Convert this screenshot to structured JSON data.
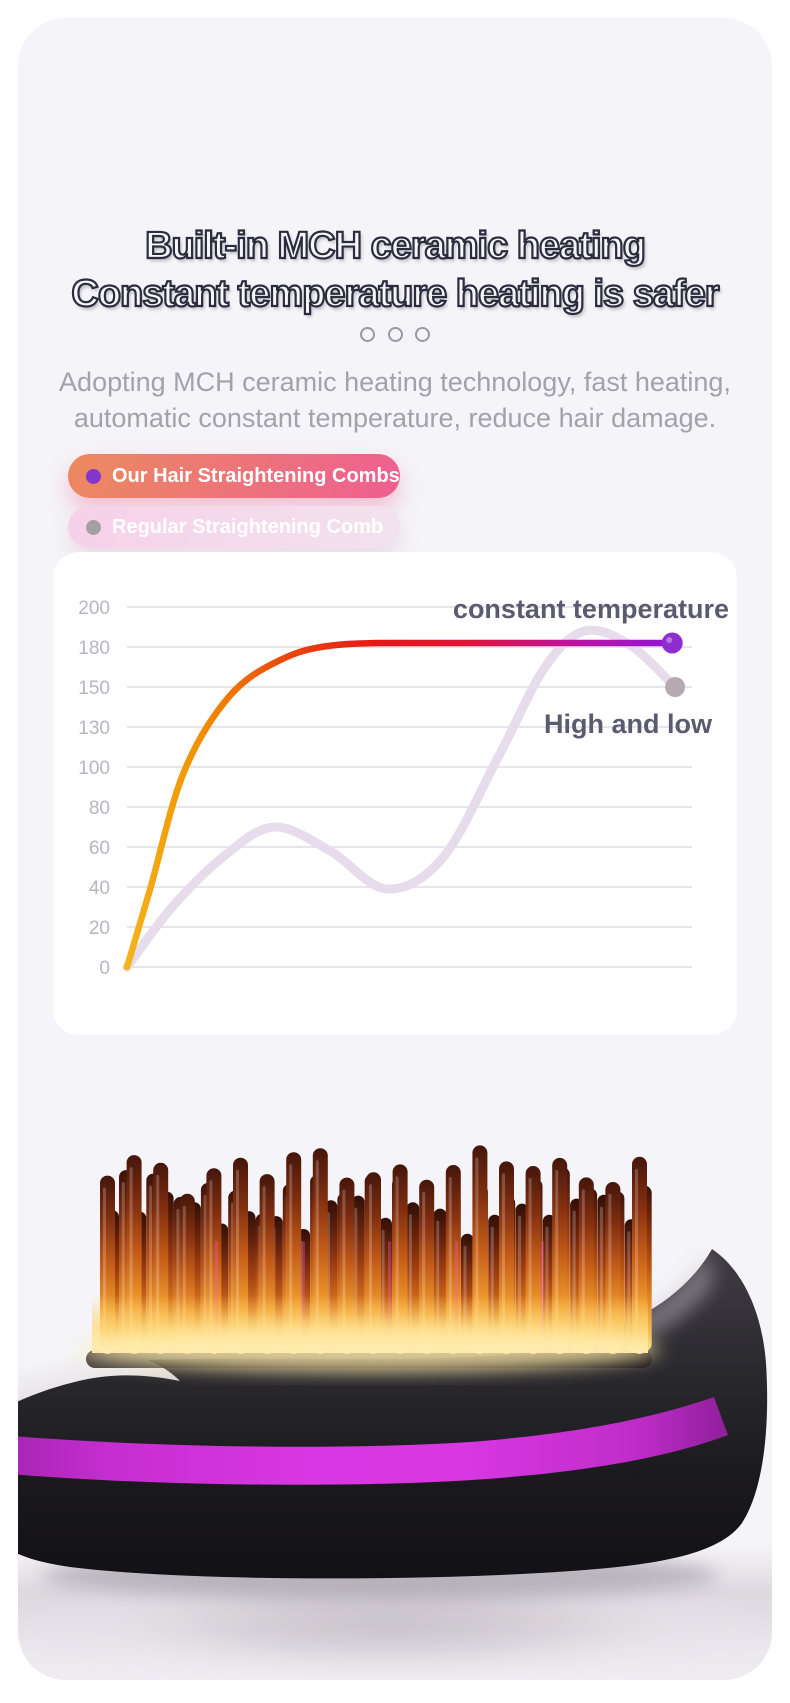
{
  "page": {
    "title_line1": "Built-in MCH ceramic heating",
    "title_line2": "Constant temperature heating is safer",
    "subtitle_line1": "Adopting MCH ceramic heating technology, fast heating,",
    "subtitle_line2": "automatic constant temperature, reduce hair damage.",
    "card_background": "#f5f4f8",
    "title_outline_color": "#2c2c3e"
  },
  "legend": {
    "ours": {
      "label": "Our Hair Straightening Combs",
      "dot_color": "#8336cb",
      "bg_from": "#ec8a5e",
      "bg_to": "#ee5f93"
    },
    "regular": {
      "label": "Regular Straightening Comb",
      "dot_color": "#a79fa6",
      "bg_from": "#f7d0e9",
      "bg_to": "#f2e3ee"
    }
  },
  "chart_data": {
    "type": "line",
    "title": "",
    "xlabel": "",
    "ylabel": "",
    "yticks": [
      0,
      20,
      40,
      60,
      80,
      100,
      130,
      150,
      180,
      200
    ],
    "ylim": [
      0,
      200
    ],
    "grid": true,
    "background": "#ffffff",
    "gridline_color": "#e7e5ec",
    "tick_label_color": "#b7b5bf",
    "x_axis_note": "unlabeled time axis; points are [percent of axis width, temperature]",
    "series": [
      {
        "name": "constant temperature",
        "legend_ref": "Our Hair Straightening Combs",
        "stroke_width": 6.5,
        "end_dot_color": "#8f2ed0",
        "label_color": "#5b5b70",
        "gradient_stops": [
          {
            "offset": 0.0,
            "color": "#f6b31c"
          },
          {
            "offset": 0.13,
            "color": "#f29100"
          },
          {
            "offset": 0.28,
            "color": "#ea4a0c"
          },
          {
            "offset": 0.45,
            "color": "#e51a15"
          },
          {
            "offset": 0.62,
            "color": "#dc1438"
          },
          {
            "offset": 0.8,
            "color": "#bf139a"
          },
          {
            "offset": 1.0,
            "color": "#8d18da"
          }
        ],
        "points": [
          [
            0,
            0
          ],
          [
            4,
            38
          ],
          [
            10,
            97
          ],
          [
            18,
            145
          ],
          [
            27,
            170
          ],
          [
            37,
            181
          ],
          [
            55,
            182
          ],
          [
            75,
            182
          ],
          [
            96.5,
            182
          ]
        ]
      },
      {
        "name": "High and low",
        "legend_ref": "Regular Straightening Comb",
        "color": "#e6dcec",
        "stroke_width": 9,
        "end_dot_color": "#b6a9b1",
        "label_color": "#5b5b70",
        "points": [
          [
            0,
            0
          ],
          [
            8,
            30
          ],
          [
            17,
            55
          ],
          [
            26,
            70
          ],
          [
            36,
            58
          ],
          [
            46,
            39
          ],
          [
            56,
            55
          ],
          [
            66,
            110
          ],
          [
            74,
            165
          ],
          [
            81,
            188
          ],
          [
            89,
            181
          ],
          [
            97,
            150
          ]
        ]
      }
    ]
  },
  "product": {
    "name": "hair straightening comb head with glowing heated bristles",
    "body_top_color": "#403e44",
    "body_bottom_color": "#121116",
    "stripe_color": "#d937e3",
    "wedge_color": "#ffffff",
    "glow_color": "#ffd879",
    "bristle_tip_color": "#2f0f08",
    "bristle_mid_color": "#c65d18",
    "bristle_base_color": "#f6cf6e",
    "glint_color": "#ff5ad8",
    "floor_color": "#ded8df"
  }
}
